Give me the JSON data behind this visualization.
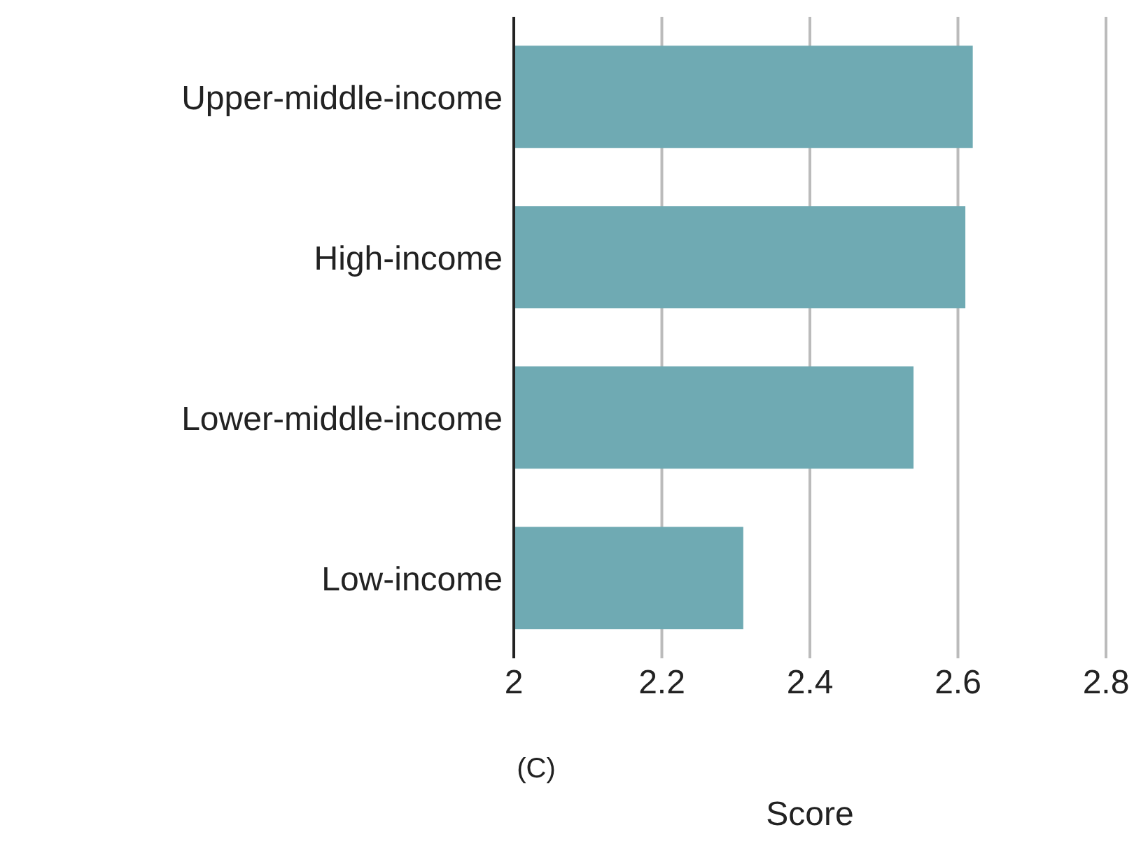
{
  "chart_data": {
    "type": "bar",
    "orientation": "horizontal",
    "categories": [
      "Upper-middle-income",
      "High-income",
      "Lower-middle-income",
      "Low-income"
    ],
    "values": [
      2.62,
      2.61,
      2.54,
      2.31
    ],
    "color": "#6faab3",
    "xlim": [
      2,
      2.8
    ],
    "xticks": [
      2,
      2.2,
      2.4,
      2.6,
      2.8
    ],
    "grid": "x",
    "xlabel": "Score",
    "annotations": [
      "(C)"
    ]
  }
}
